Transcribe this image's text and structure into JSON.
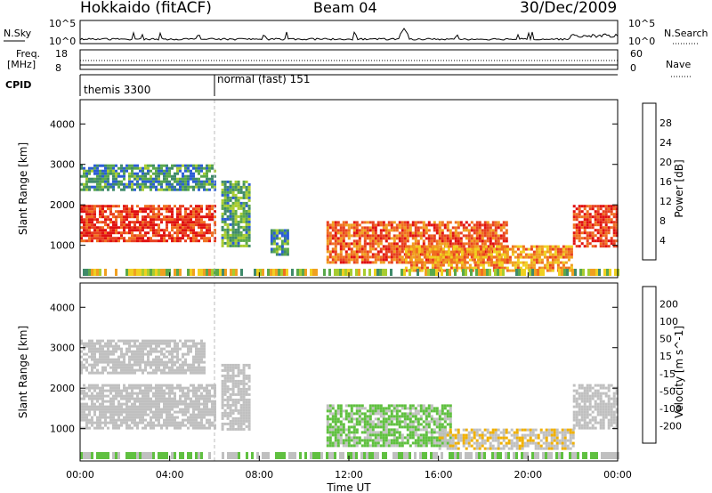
{
  "header": {
    "station": "Hokkaido (fitACF)",
    "beam": "Beam 04",
    "date": "30/Dec/2009"
  },
  "top_panels": {
    "nsky_label": "N.Sky",
    "nsearch_label": "N.Search",
    "nsky_ticks": [
      "10^5",
      "10^0"
    ],
    "nsearch_ticks": [
      "10^5",
      "10^0"
    ],
    "freq_label_1": "Freq.",
    "freq_label_2": "[MHz]",
    "freq_ticks": [
      "18",
      "8"
    ],
    "nave_label": "Nave",
    "nave_ticks": [
      "60",
      "0"
    ],
    "cpid_label": "CPID",
    "cpid_segments": [
      {
        "label": "themis 3300",
        "start_hour": 0
      },
      {
        "label": "normal (fast) 151",
        "start_hour": 6
      }
    ]
  },
  "chart_data": [
    {
      "type": "heatmap",
      "title": "Power",
      "ylabel": "Slant Range [km]",
      "xlabel": "",
      "xlim": [
        0,
        24
      ],
      "ylim": [
        200,
        4600
      ],
      "y_ticks": [
        "1000",
        "2000",
        "3000",
        "4000"
      ],
      "colorbar": {
        "label": "Power [dB]",
        "ticks": [
          "4",
          "8",
          "12",
          "16",
          "20",
          "24",
          "28"
        ],
        "range": [
          0,
          30
        ],
        "colors": [
          "#1a1aff",
          "#2a5cd6",
          "#3f8a6a",
          "#5aa84a",
          "#a8cc30",
          "#f0d020",
          "#f0a020",
          "#f07020",
          "#e84020",
          "#e01010"
        ]
      },
      "echo_regions": [
        {
          "start": 0.0,
          "end": 6.0,
          "min_km": 1100,
          "max_km": 2000,
          "value": 26
        },
        {
          "start": 0.0,
          "end": 6.0,
          "min_km": 2400,
          "max_km": 3000,
          "value": 8
        },
        {
          "start": 6.3,
          "end": 7.5,
          "min_km": 1000,
          "max_km": 2600,
          "value": 10
        },
        {
          "start": 8.5,
          "end": 9.3,
          "min_km": 800,
          "max_km": 1400,
          "value": 8
        },
        {
          "start": 11.0,
          "end": 19.0,
          "min_km": 600,
          "max_km": 1600,
          "value": 24
        },
        {
          "start": 14.5,
          "end": 22.0,
          "min_km": 400,
          "max_km": 1000,
          "value": 20
        },
        {
          "start": 22.0,
          "end": 24.0,
          "min_km": 1000,
          "max_km": 2000,
          "value": 26
        }
      ]
    },
    {
      "type": "heatmap",
      "title": "Velocity",
      "ylabel": "Slant Range [km]",
      "xlabel": "Time UT",
      "xlim": [
        0,
        24
      ],
      "ylim": [
        200,
        4600
      ],
      "x_ticks": [
        "00:00",
        "04:00",
        "08:00",
        "12:00",
        "16:00",
        "20:00",
        "00:00"
      ],
      "y_ticks": [
        "1000",
        "2000",
        "3000",
        "4000"
      ],
      "colorbar": {
        "label": "Velocity [m s^-1]",
        "ticks": [
          "200",
          "100",
          "50",
          "15",
          "-15",
          "-50",
          "-100",
          "-200"
        ],
        "range": [
          -250,
          250
        ],
        "colors": [
          "#1a3ad0",
          "#2a6ac0",
          "#2a9a3a",
          "#60c040",
          "#c0c0c0",
          "#c0c0c0",
          "#f0b000",
          "#f08000",
          "#f05000",
          "#e01010"
        ]
      },
      "echo_regions": [
        {
          "start": 0.0,
          "end": 6.0,
          "min_km": 1000,
          "max_km": 2100,
          "value": 0
        },
        {
          "start": 0.0,
          "end": 5.5,
          "min_km": 2400,
          "max_km": 3200,
          "value": 5
        },
        {
          "start": 6.3,
          "end": 7.5,
          "min_km": 1000,
          "max_km": 2600,
          "value": 0
        },
        {
          "start": 11.0,
          "end": 16.5,
          "min_km": 600,
          "max_km": 1600,
          "value": -60
        },
        {
          "start": 16.0,
          "end": 22.0,
          "min_km": 500,
          "max_km": 1000,
          "value": 40
        },
        {
          "start": 22.0,
          "end": 24.0,
          "min_km": 1000,
          "max_km": 2100,
          "value": 0
        }
      ]
    }
  ]
}
